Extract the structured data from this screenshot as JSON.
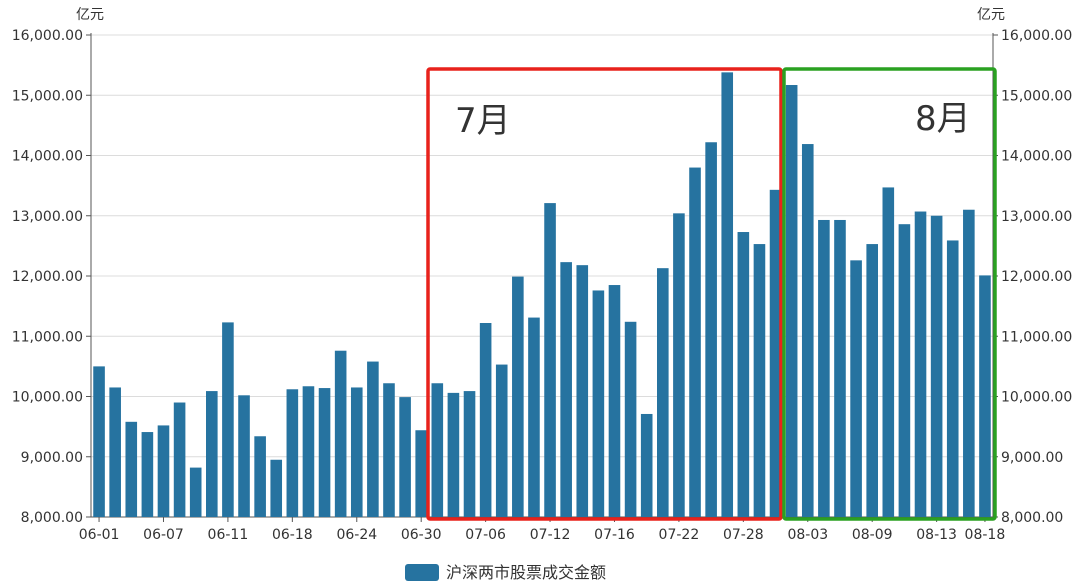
{
  "chart_data": {
    "type": "bar",
    "y_unit": "亿元",
    "ylim": [
      8000,
      16000
    ],
    "y_ticks": [
      "8,000.00",
      "9,000.00",
      "10,000.00",
      "11,000.00",
      "12,000.00",
      "13,000.00",
      "14,000.00",
      "15,000.00",
      "16,000.00"
    ],
    "grid": true,
    "bar_color": "#2673a0",
    "x_tick_labels": [
      "06-01",
      "06-07",
      "06-11",
      "06-18",
      "06-24",
      "06-30",
      "07-06",
      "07-12",
      "07-16",
      "07-22",
      "07-28",
      "08-03",
      "08-09",
      "08-13",
      "08-18"
    ],
    "series": [
      {
        "name": "沪深两市股票成交金额",
        "values": [
          10500,
          10150,
          9580,
          9410,
          9520,
          9900,
          8820,
          10090,
          11230,
          10020,
          9340,
          8950,
          10120,
          10170,
          10140,
          10760,
          10150,
          10580,
          10220,
          9990,
          9440,
          10220,
          10060,
          10090,
          11220,
          10530,
          11990,
          11310,
          13210,
          12230,
          12180,
          11760,
          11850,
          11240,
          9710,
          12130,
          13040,
          13800,
          14220,
          15380,
          12730,
          12530,
          13430,
          15170,
          14190,
          12930,
          12930,
          12260,
          12530,
          13470,
          12860,
          13070,
          13000,
          12590,
          13100,
          12010
        ]
      }
    ],
    "legend": {
      "label": "沪深两市股票成交金额",
      "position": "bottom-center"
    },
    "annotations": [
      {
        "label": "7月",
        "color": "#e8221c"
      },
      {
        "label": "8月",
        "color": "#2aa121"
      }
    ]
  }
}
